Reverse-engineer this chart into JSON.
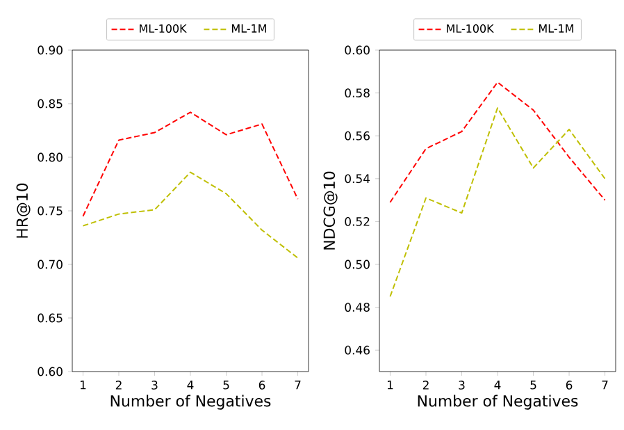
{
  "chart_data": [
    {
      "type": "line",
      "xlabel": "Number of Negatives",
      "ylabel": "HR@10",
      "x": [
        1,
        2,
        3,
        4,
        5,
        6,
        7
      ],
      "xlim": [
        0.7,
        7.3
      ],
      "xticks": [
        1,
        2,
        3,
        4,
        5,
        6,
        7
      ],
      "ylim": [
        0.6,
        0.9
      ],
      "yticks": [
        {
          "value": 0.6,
          "label": "0.60"
        },
        {
          "value": 0.65,
          "label": "0.65"
        },
        {
          "value": 0.7,
          "label": "0.70"
        },
        {
          "value": 0.75,
          "label": "0.75"
        },
        {
          "value": 0.8,
          "label": "0.80"
        },
        {
          "value": 0.85,
          "label": "0.85"
        },
        {
          "value": 0.9,
          "label": "0.90"
        }
      ],
      "legend": "top",
      "line_style": "dashed",
      "series": [
        {
          "name": "ML-100K",
          "color": "#ff0000",
          "values": [
            0.745,
            0.816,
            0.823,
            0.842,
            0.821,
            0.831,
            0.761
          ]
        },
        {
          "name": "ML-1M",
          "color": "#bfbf00",
          "values": [
            0.736,
            0.747,
            0.751,
            0.786,
            0.766,
            0.732,
            0.706
          ]
        }
      ]
    },
    {
      "type": "line",
      "xlabel": "Number of Negatives",
      "ylabel": "NDCG@10",
      "x": [
        1,
        2,
        3,
        4,
        5,
        6,
        7
      ],
      "xlim": [
        0.7,
        7.3
      ],
      "xticks": [
        1,
        2,
        3,
        4,
        5,
        6,
        7
      ],
      "ylim": [
        0.45,
        0.6
      ],
      "yticks": [
        {
          "value": 0.46,
          "label": "0.46"
        },
        {
          "value": 0.48,
          "label": "0.48"
        },
        {
          "value": 0.5,
          "label": "0.50"
        },
        {
          "value": 0.52,
          "label": "0.52"
        },
        {
          "value": 0.54,
          "label": "0.54"
        },
        {
          "value": 0.56,
          "label": "0.56"
        },
        {
          "value": 0.58,
          "label": "0.58"
        },
        {
          "value": 0.6,
          "label": "0.60"
        }
      ],
      "legend": "top",
      "line_style": "dashed",
      "series": [
        {
          "name": "ML-100K",
          "color": "#ff0000",
          "values": [
            0.529,
            0.554,
            0.562,
            0.585,
            0.572,
            0.55,
            0.53
          ]
        },
        {
          "name": "ML-1M",
          "color": "#bfbf00",
          "values": [
            0.485,
            0.531,
            0.524,
            0.573,
            0.545,
            0.563,
            0.54
          ]
        }
      ]
    }
  ]
}
